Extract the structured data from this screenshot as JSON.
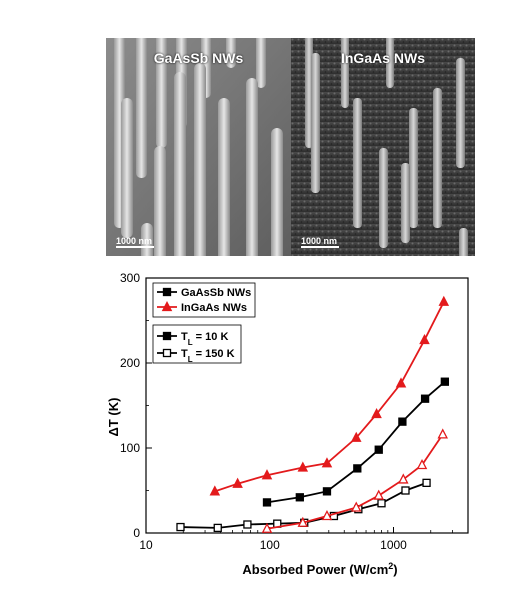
{
  "figure": {
    "sem_left": {
      "title": "GaAsSb NWs",
      "scale_bar": "1000 nm"
    },
    "sem_right": {
      "title": "InGaAs NWs",
      "scale_bar": "1000 nm"
    }
  },
  "chart_data": {
    "type": "line",
    "title": "",
    "xlabel": "Absorbed Power (W/cm",
    "xlabel_sup": "2",
    "xlabel_end": ")",
    "ylabel": "ΔT (K)",
    "xscale": "log",
    "xlim": [
      10,
      4000
    ],
    "ylim": [
      0,
      300
    ],
    "x_ticks": [
      10,
      100,
      1000
    ],
    "x_tick_labels": [
      "10",
      "100",
      "1000"
    ],
    "y_ticks": [
      0,
      100,
      200,
      300
    ],
    "y_tick_labels": [
      "0",
      "100",
      "200",
      "300"
    ],
    "grid": false,
    "legend_placement": "top-left",
    "legend": [
      {
        "label": "GaAsSb NWs",
        "color": "#000000",
        "marker": "square"
      },
      {
        "label": "InGaAs NWs",
        "color": "#e31a1c",
        "marker": "triangle"
      }
    ],
    "legend2": [
      {
        "label_main": "T",
        "label_sub": "L",
        "label_rest": " = 10 K",
        "fill": "filled"
      },
      {
        "label_main": "T",
        "label_sub": "L",
        "label_rest": " = 150 K",
        "fill": "open"
      }
    ],
    "series": [
      {
        "name": "GaAsSb NWs",
        "condition": "T_L = 10 K",
        "color": "#000000",
        "marker": "square",
        "filled": true,
        "x": [
          95,
          175,
          290,
          510,
          760,
          1180,
          1800,
          2600
        ],
        "y": [
          36,
          42,
          49,
          76,
          98,
          131,
          158,
          178
        ]
      },
      {
        "name": "InGaAs NWs",
        "condition": "T_L = 10 K",
        "color": "#e31a1c",
        "marker": "triangle",
        "filled": true,
        "x": [
          36,
          55,
          95,
          185,
          290,
          500,
          730,
          1150,
          1780,
          2550
        ],
        "y": [
          49,
          58,
          68,
          77,
          82,
          112,
          140,
          176,
          227,
          272
        ]
      },
      {
        "name": "GaAsSb NWs",
        "condition": "T_L = 150 K",
        "color": "#000000",
        "marker": "square",
        "filled": false,
        "x": [
          19,
          38,
          66,
          115,
          190,
          330,
          520,
          800,
          1250,
          1850
        ],
        "y": [
          7,
          6,
          10,
          11,
          12,
          20,
          28,
          35,
          50,
          59
        ]
      },
      {
        "name": "InGaAs NWs",
        "condition": "T_L = 150 K",
        "color": "#e31a1c",
        "marker": "triangle",
        "filled": false,
        "x": [
          95,
          185,
          290,
          500,
          760,
          1200,
          1700,
          2500
        ],
        "y": [
          5,
          12,
          20,
          30,
          44,
          63,
          80,
          116
        ]
      }
    ]
  }
}
